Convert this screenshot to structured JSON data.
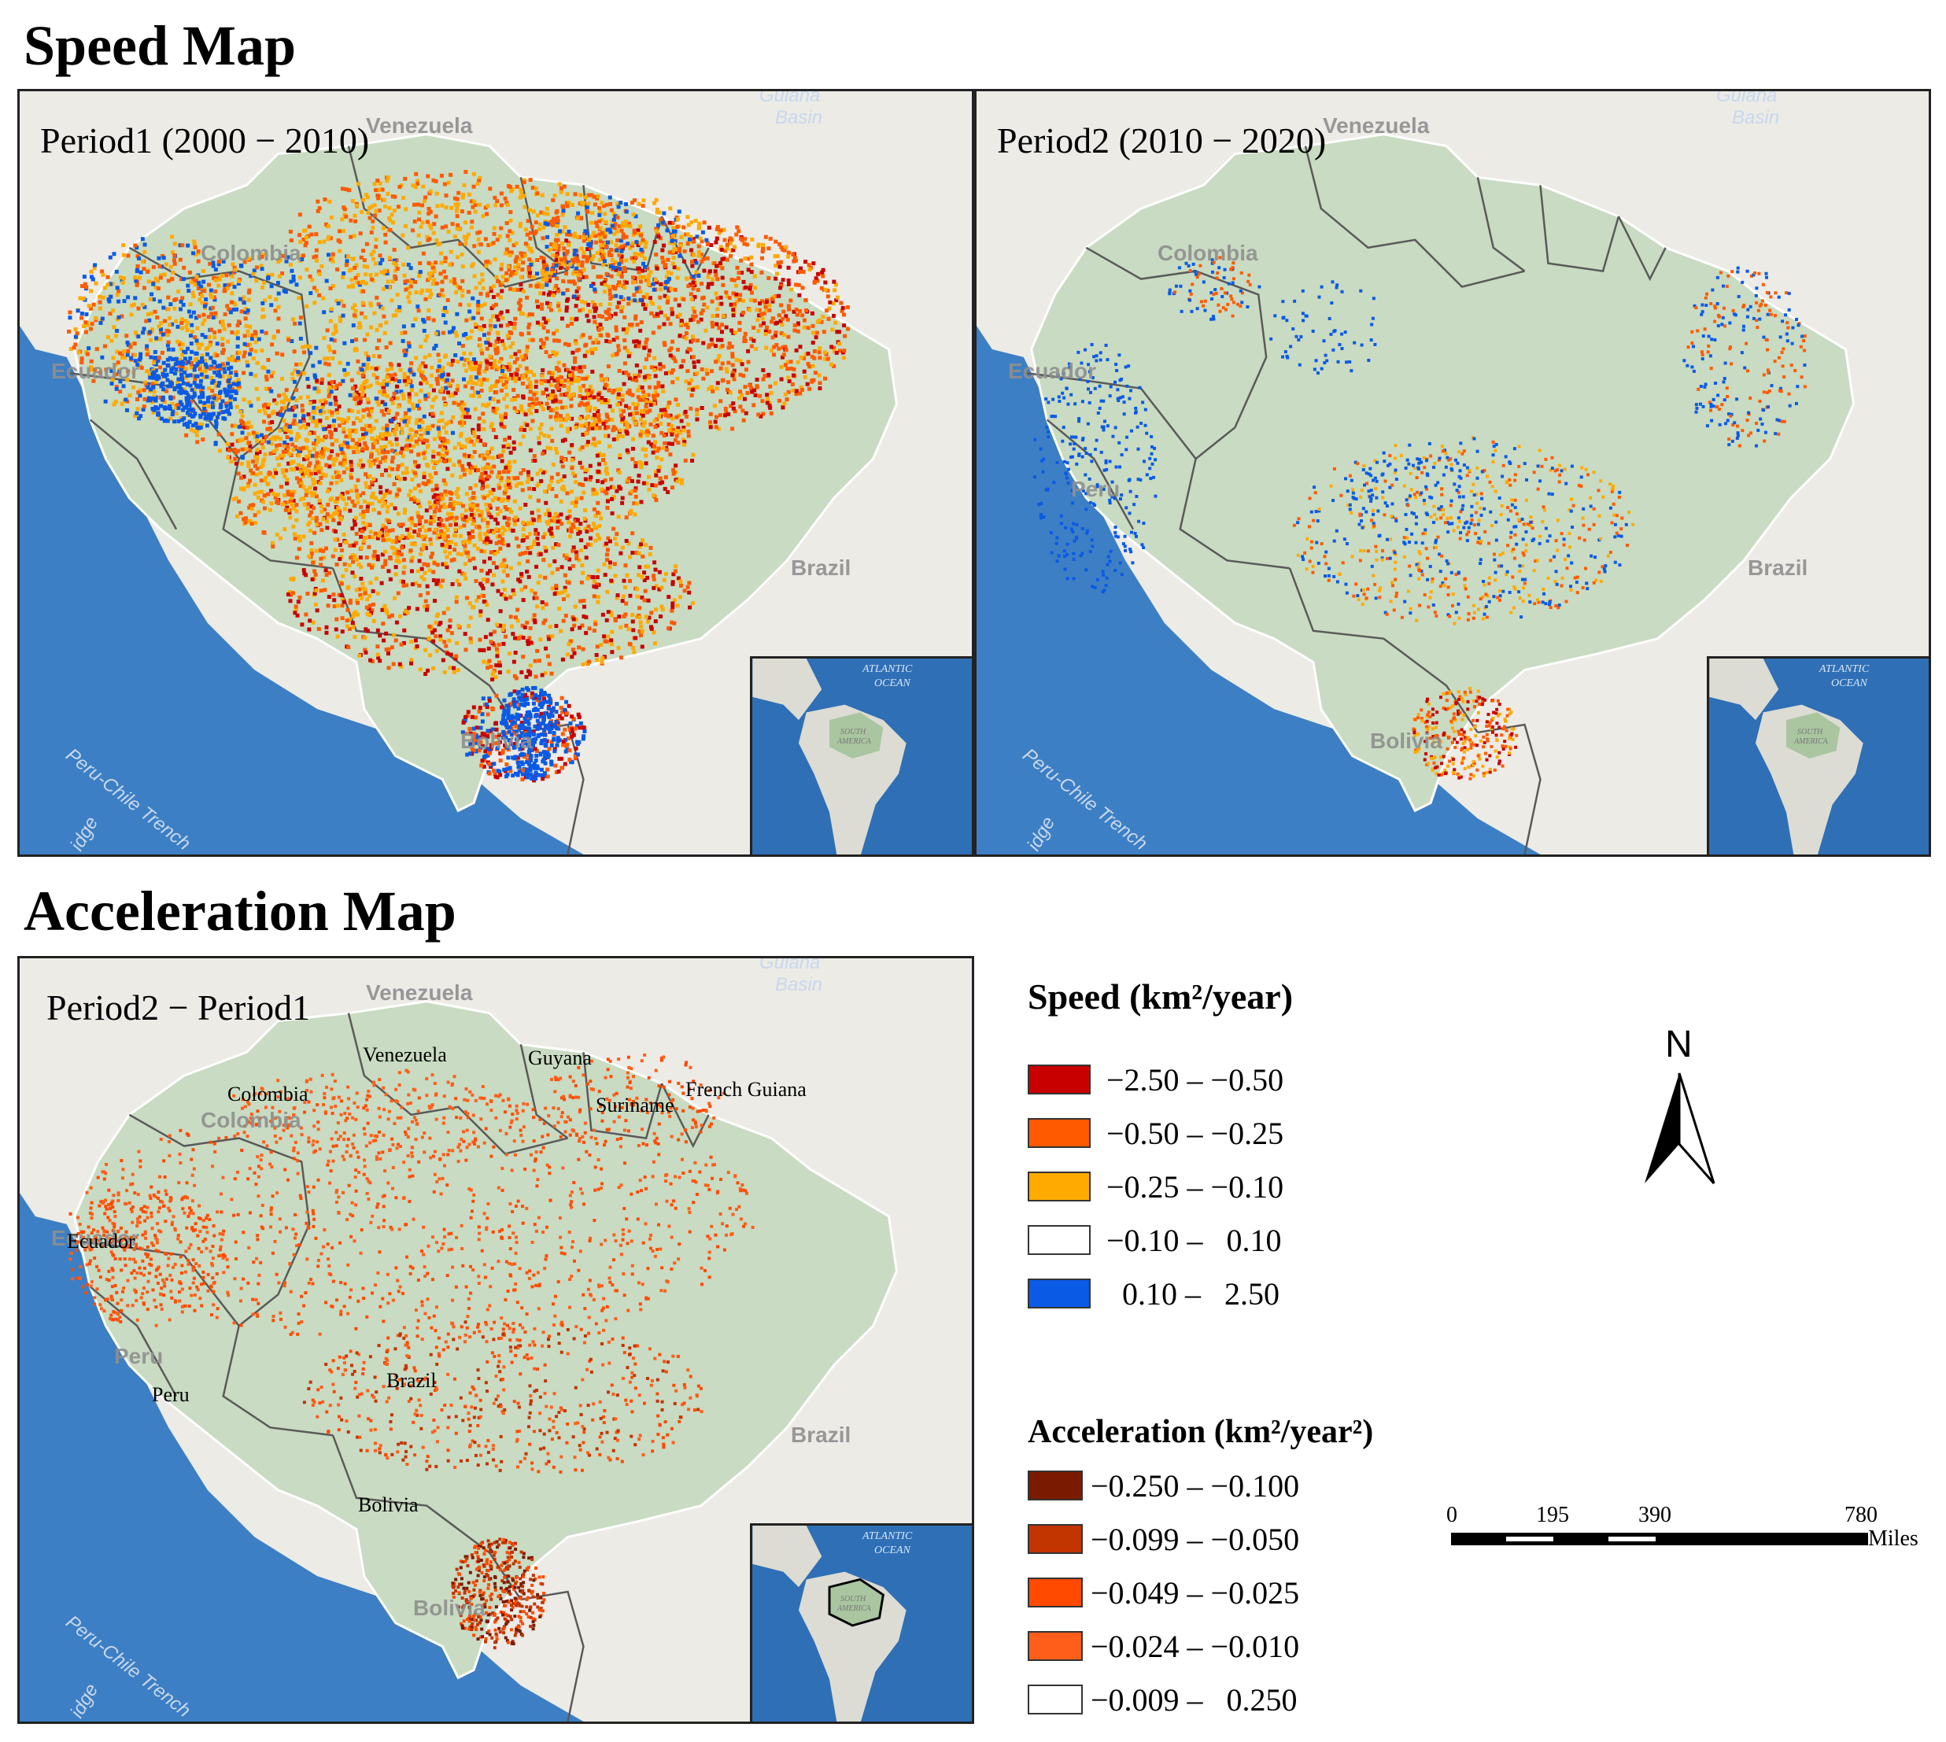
{
  "speed_section": {
    "title": "Speed Map",
    "panels": [
      {
        "label": "Period1 (2000 − 2010)"
      },
      {
        "label": "Period2 (2010 − 2020)"
      }
    ]
  },
  "acceleration_section": {
    "title": "Acceleration Map",
    "panel": {
      "label": "Period2 − Period1"
    },
    "country_labels": {
      "colombia": "Colombia",
      "venezuela": "Venezuela",
      "guyana": "Guyana",
      "suriname": "Suriname",
      "french_guiana": "French Guiana",
      "ecuador": "Ecuador",
      "peru": "Peru",
      "brazil": "Brazil",
      "bolivia": "Bolivia"
    }
  },
  "basemap_labels": {
    "guiana_basin_1": "Guiana",
    "guiana_basin_2": "Basin",
    "venezuela": "Venezuela",
    "colombia": "Colombia",
    "ecuador": "Ecuador",
    "peru": "Peru",
    "brazil": "Brazil",
    "bolivia": "Bolivia",
    "trench": "Peru-Chile Trench",
    "ridge": "idge"
  },
  "inset_labels": {
    "ocean_1": "ATLANTIC",
    "ocean_2": "OCEAN",
    "continent_1": "SOUTH",
    "continent_2": "AMERICA"
  },
  "speed_legend": {
    "title": "Speed (km²/year)",
    "items": [
      {
        "label": "−2.50 – −0.50",
        "color": "#c80000"
      },
      {
        "label": "−0.50 – −0.25",
        "color": "#ff5a00"
      },
      {
        "label": "−0.25 – −0.10",
        "color": "#ffaa00"
      },
      {
        "label": "−0.10 –   0.10",
        "color": "#ffffff"
      },
      {
        "label": "  0.10 –   2.50",
        "color": "#0a5ae6"
      }
    ]
  },
  "acceleration_legend": {
    "title": "Acceleration (km²/year²)",
    "items": [
      {
        "label": "−0.250 – −0.100",
        "color": "#7a1a00"
      },
      {
        "label": "−0.099 – −0.050",
        "color": "#c23400"
      },
      {
        "label": "−0.049 – −0.025",
        "color": "#ff4a00"
      },
      {
        "label": "−0.024 – −0.010",
        "color": "#ff5e1a"
      },
      {
        "label": "−0.009 –   0.250",
        "color": "#ffffff"
      }
    ]
  },
  "north_arrow": {
    "label": "N"
  },
  "scale_bar": {
    "ticks": [
      "0",
      "195",
      "390",
      "780"
    ],
    "unit": "Miles"
  },
  "colors": {
    "ocean": "#3d7fc4",
    "land": "#ecebe6",
    "amazon": "#c9dbc2",
    "border": "#5a5a5a"
  }
}
